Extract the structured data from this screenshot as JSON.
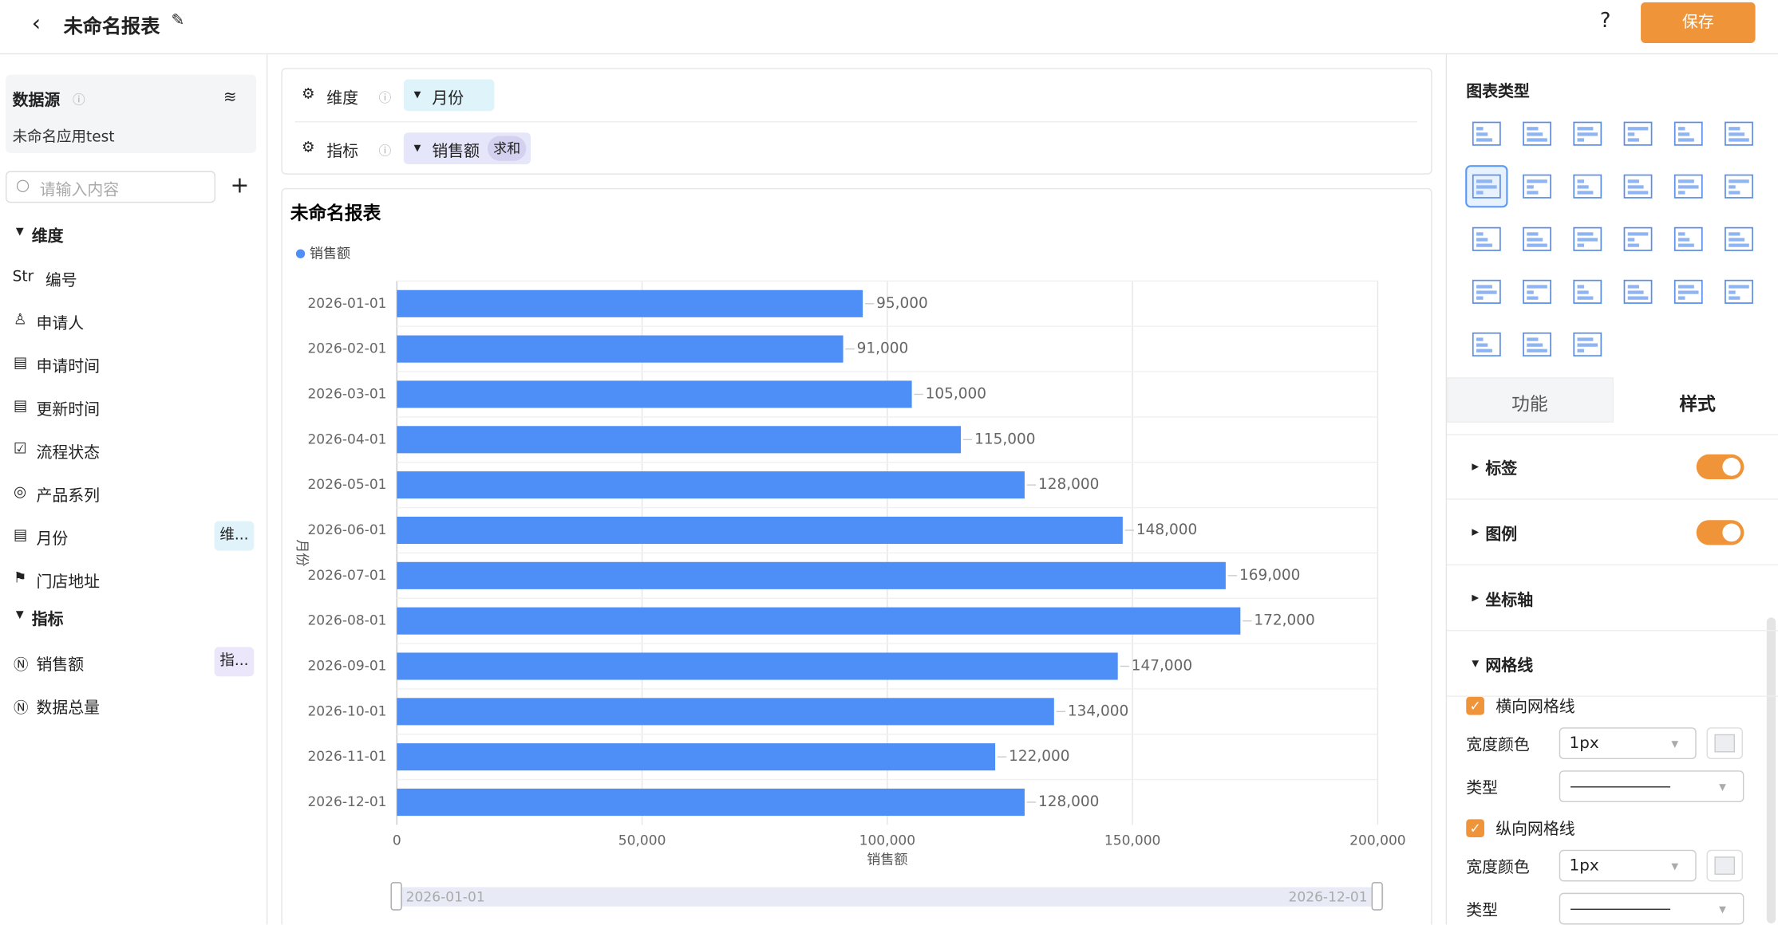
{
  "header": {
    "title": "未命名报表",
    "help": "?",
    "save": "保存"
  },
  "sidebar": {
    "datasource_label": "数据源",
    "datasource_name": "未命名应用test",
    "search_placeholder": "请输入内容",
    "dimensions_heading": "维度",
    "dimensions": [
      "编号",
      "申请人",
      "申请时间",
      "更新时间",
      "流程状态",
      "产品系列",
      "月份",
      "门店地址"
    ],
    "str_icon": "Str",
    "dimension_tag": "维...",
    "measures_heading": "指标",
    "measures": [
      "销售额",
      "数据总量"
    ],
    "measure_tag": "指..."
  },
  "config": {
    "dimension_label": "维度",
    "dimension_value": "月份",
    "measure_label": "指标",
    "measure_value": "销售额",
    "measure_agg": "求和"
  },
  "chart_data": {
    "type": "bar",
    "orientation": "horizontal",
    "title": "未命名报表",
    "xlabel": "销售额",
    "ylabel": "月份",
    "categories": [
      "2026-01-01",
      "2026-02-01",
      "2026-03-01",
      "2026-04-01",
      "2026-05-01",
      "2026-06-01",
      "2026-07-01",
      "2026-08-01",
      "2026-09-01",
      "2026-10-01",
      "2026-11-01",
      "2026-12-01"
    ],
    "series": [
      {
        "name": "销售额",
        "color": "#4e8ef7",
        "values": [
          95000,
          91000,
          105000,
          115000,
          128000,
          148000,
          169000,
          172000,
          147000,
          134000,
          122000,
          128000
        ],
        "value_labels": [
          "95,000",
          "91,000",
          "105,000",
          "115,000",
          "128,000",
          "148,000",
          "169,000",
          "172,000",
          "147,000",
          "134,000",
          "122,000",
          "128,000"
        ]
      }
    ],
    "xlim": [
      0,
      200000
    ],
    "xticks": [
      0,
      {
        "value": 50000,
        "label": "50,000"
      },
      {
        "value": 100000,
        "label": "100,000"
      },
      {
        "value": 150000,
        "label": "150,000"
      },
      {
        "value": 200000,
        "label": "200,000"
      }
    ],
    "grid": true,
    "legend": "top-left"
  },
  "panel": {
    "chart_type_heading": "图表类型",
    "tabs": [
      "功能",
      "样式"
    ],
    "sections": [
      "标签",
      "图例",
      "坐标轴",
      "网格线"
    ],
    "h_grid": "横向网格线",
    "v_grid": "纵向网格线",
    "width_color": "宽度颜色",
    "type_label": "类型",
    "width_value": "1px"
  }
}
